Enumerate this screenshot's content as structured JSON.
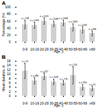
{
  "chart_data": [
    {
      "type": "bar",
      "title": "A",
      "xlabel": "Age, y",
      "ylabel": "Percentage (%)",
      "categories": [
        "0-9",
        "10-19",
        "20-29",
        "30-39",
        "40-49",
        "50-59",
        "60-69",
        "≥69"
      ],
      "values": [
        50,
        48,
        60,
        52,
        55,
        42,
        35,
        25
      ],
      "errors": [
        12,
        9,
        9,
        8,
        8,
        10,
        9,
        7
      ],
      "annotations": [
        "n = 148",
        "n = 1095",
        "n = 1021",
        "n = 1188",
        "n = 1408",
        "n = 1403",
        "n = 1095",
        "n = 986"
      ],
      "color": "#d0d0d0",
      "ylim": [
        0,
        100
      ],
      "yticks": [
        0,
        20,
        40,
        60,
        80,
        100
      ],
      "grid": false
    },
    {
      "type": "bar",
      "title": "B",
      "xlabel": "Age, y",
      "ylabel": "Mean duration, d",
      "categories": [
        "0-9",
        "10-19",
        "20-29",
        "30-39",
        "40-49",
        "50-59",
        "60-69",
        "≥69"
      ],
      "values": [
        11.5,
        7.0,
        9.0,
        6.5,
        6.0,
        9.5,
        4.0,
        3.5
      ],
      "errors": [
        3.5,
        1.5,
        1.5,
        1.2,
        1.0,
        4.0,
        1.2,
        1.0
      ],
      "annotations": [
        "n = 55",
        "n = 480",
        "n = 457",
        "n = 1009",
        "n = 778",
        "n = 154",
        "n = 943",
        "n = 51"
      ],
      "color": "#d0d0d0",
      "ylim": [
        0,
        16
      ],
      "yticks": [
        0,
        2,
        4,
        6,
        8,
        10,
        12,
        14,
        16
      ],
      "grid": false
    }
  ]
}
